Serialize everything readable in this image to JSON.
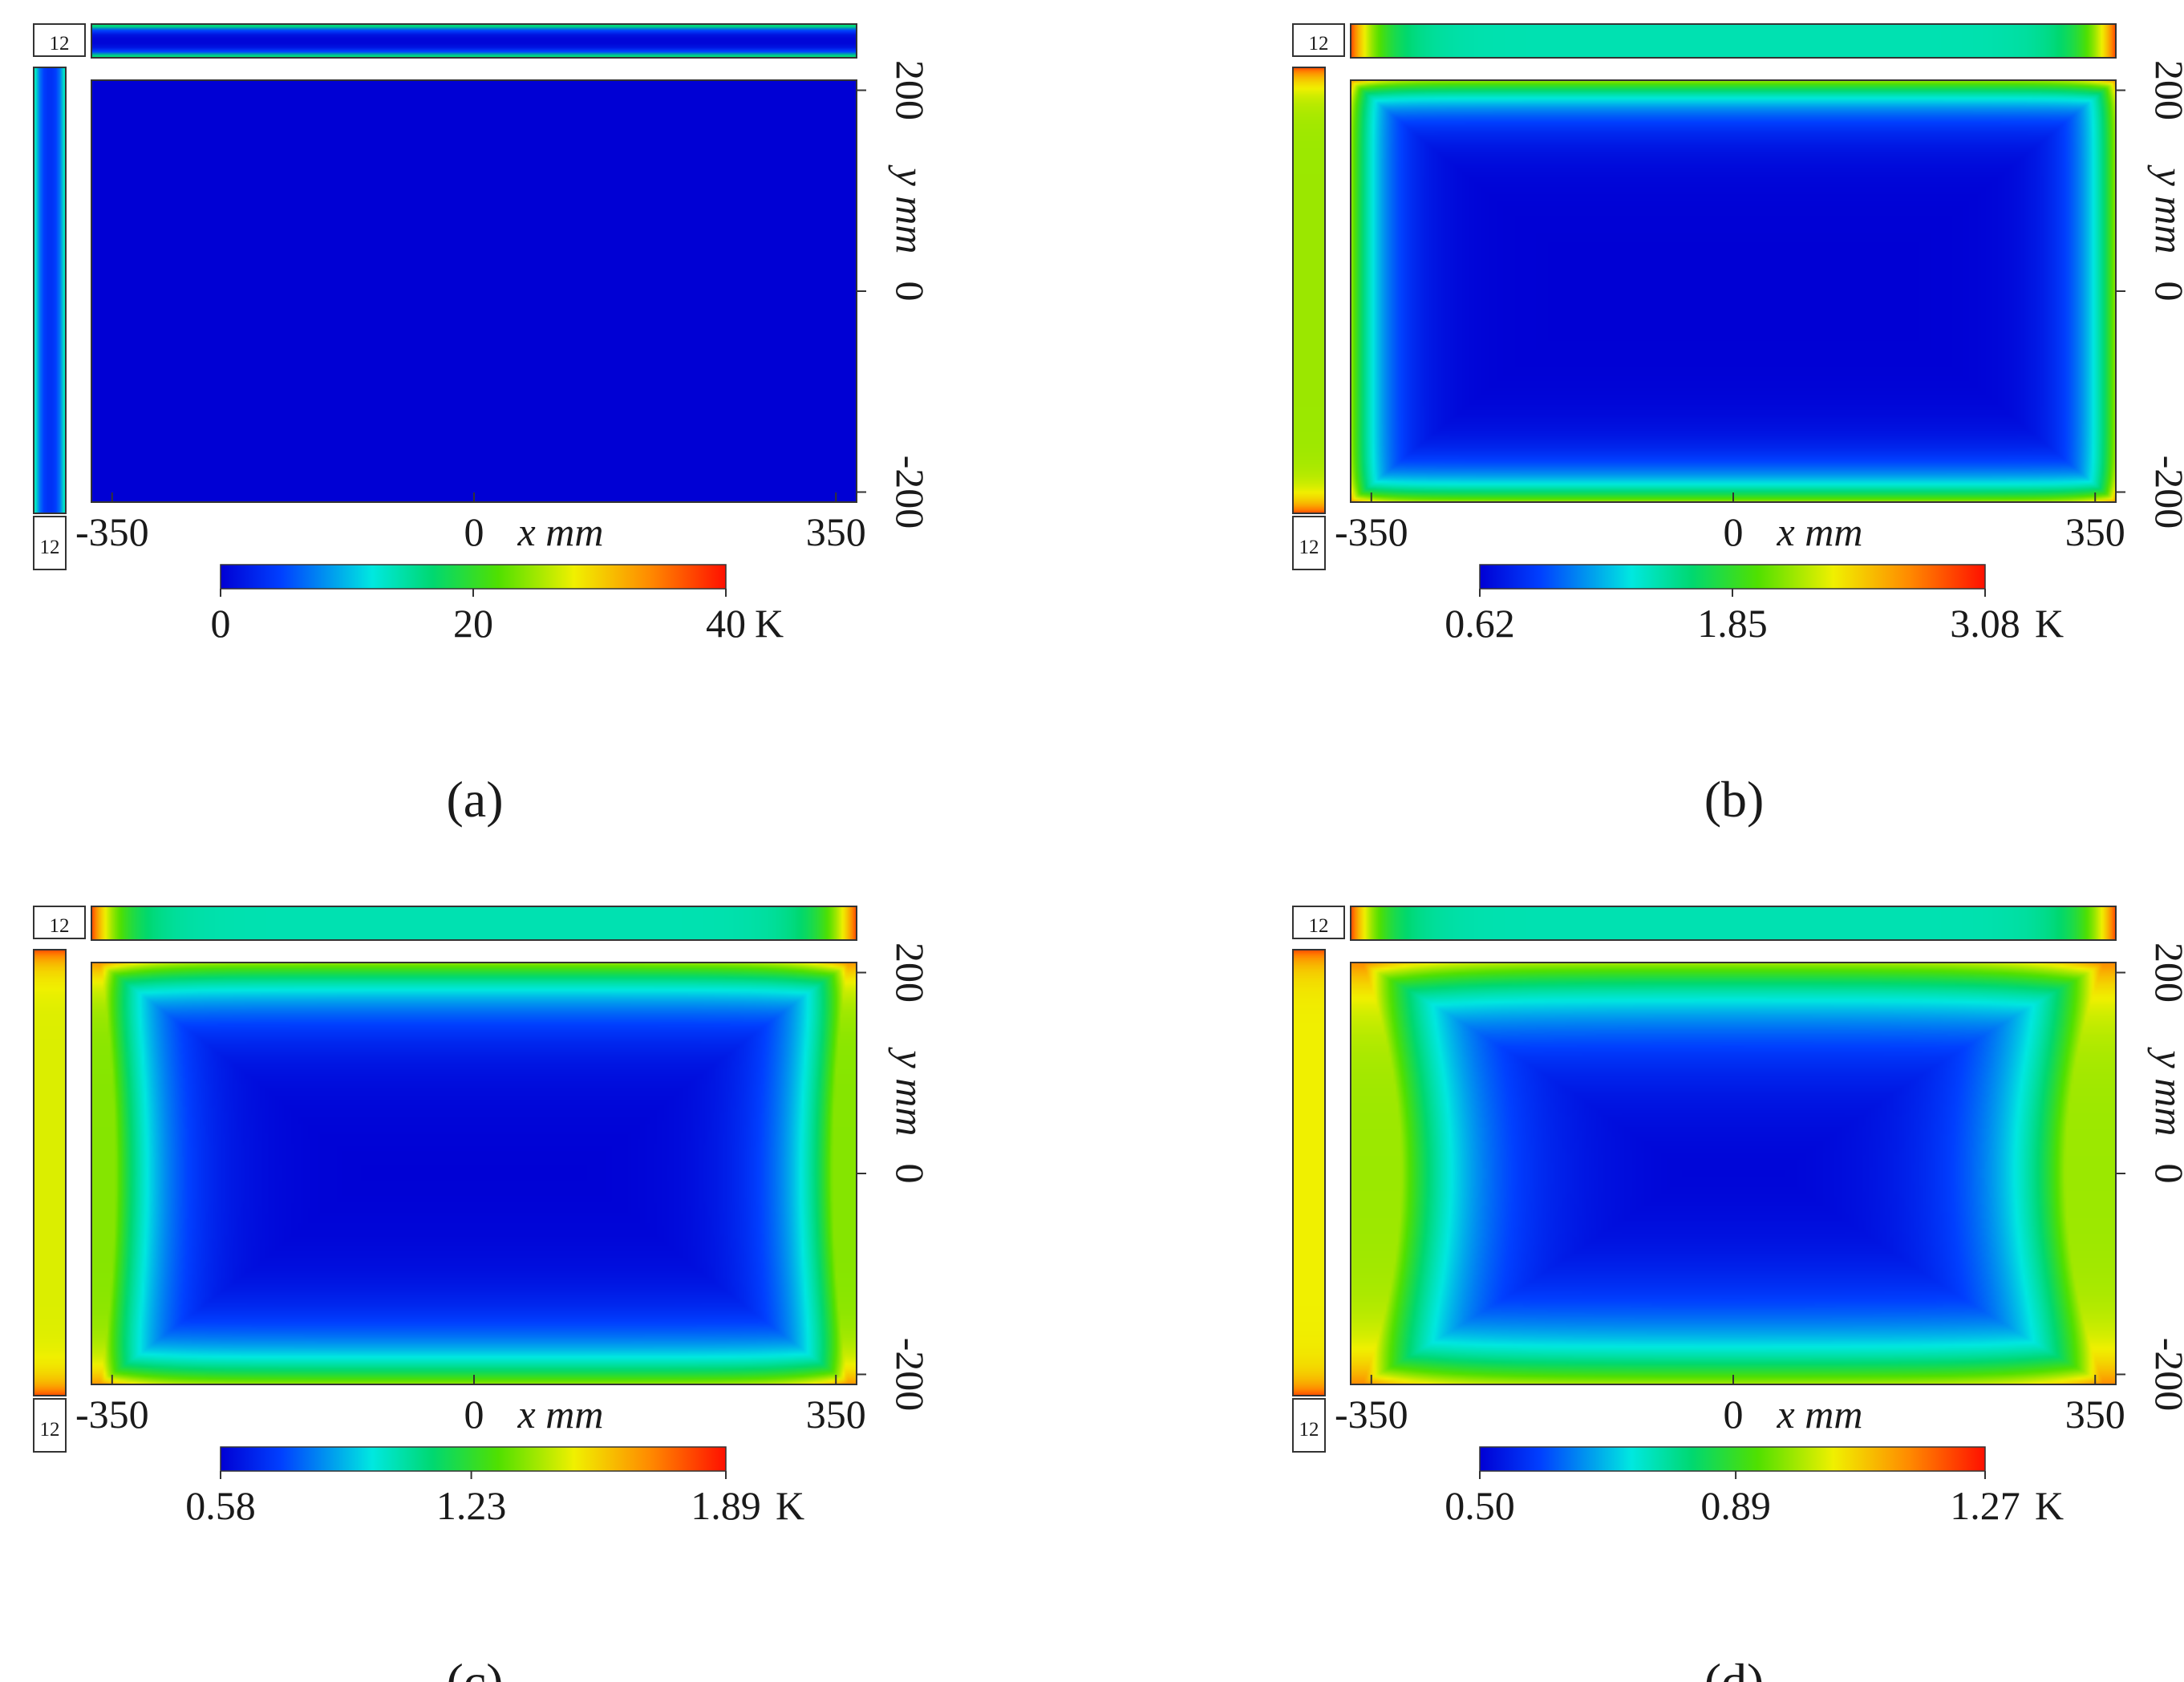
{
  "chart_data": [
    {
      "type": "heatmap",
      "panel": "(a)",
      "panel_letter": "a",
      "x_ticks": [
        "-350",
        "0",
        "350"
      ],
      "x_unit": "x mm",
      "y_ticks": [
        "200",
        "0",
        "-200"
      ],
      "y_unit": "y mm",
      "xlim": [
        -370,
        370
      ],
      "ylim": [
        -210,
        210
      ],
      "strip_label": "12",
      "colorbar": {
        "ticks": [
          "0",
          "20",
          "40"
        ],
        "unit": "K",
        "min": 0,
        "max": 40
      },
      "field": {
        "center": 0,
        "wall_peak": 0,
        "corner_peak": 0,
        "decay_x": 0.02,
        "decay_y": 0.02,
        "bend": 0,
        "inset": 0,
        "top_strip_edge": 0,
        "top_strip_mid": 0,
        "side_strip_edge": 0,
        "side_strip_mid": 0,
        "outer_edge_top": 0.45
      }
    },
    {
      "type": "heatmap",
      "panel": "(b)",
      "panel_letter": "b",
      "x_ticks": [
        "-350",
        "0",
        "350"
      ],
      "x_unit": "x mm",
      "y_ticks": [
        "200",
        "0",
        "-200"
      ],
      "y_unit": "y mm",
      "xlim": [
        -370,
        370
      ],
      "ylim": [
        -210,
        210
      ],
      "strip_label": "12",
      "colorbar": {
        "ticks": [
          "0.62",
          "1.85",
          "3.08"
        ],
        "unit": "K",
        "min": 0.62,
        "max": 3.08
      },
      "field": {
        "center": 0,
        "wall_peak": 0.6,
        "corner_peak": 0.88,
        "decay_x": 0.04,
        "decay_y": 0.06,
        "bend": 0,
        "inset": 0,
        "top_strip_edge": 0.92,
        "top_strip_mid": 0.35,
        "side_strip_edge": 0.92,
        "side_strip_mid": 0.62,
        "outer_edge_top": 0
      }
    },
    {
      "type": "heatmap",
      "panel": "(c)",
      "panel_letter": "c",
      "x_ticks": [
        "-350",
        "0",
        "350"
      ],
      "x_unit": "x mm",
      "y_ticks": [
        "200",
        "0",
        "-200"
      ],
      "y_unit": "y mm",
      "xlim": [
        -370,
        370
      ],
      "ylim": [
        -210,
        210
      ],
      "strip_label": "12",
      "colorbar": {
        "ticks": [
          "0.58",
          "1.23",
          "1.89"
        ],
        "unit": "K",
        "min": 0.58,
        "max": 1.89
      },
      "field": {
        "center": 0,
        "wall_peak": 0.6,
        "corner_peak": 0.92,
        "decay_x": 0.06,
        "decay_y": 0.09,
        "bend": 0.02,
        "inset": 0.01,
        "top_strip_edge": 0.92,
        "top_strip_mid": 0.35,
        "side_strip_edge": 0.92,
        "side_strip_mid": 0.68,
        "outer_edge_top": 0
      }
    },
    {
      "type": "heatmap",
      "panel": "(d)",
      "panel_letter": "d",
      "x_ticks": [
        "-350",
        "0",
        "350"
      ],
      "x_unit": "x mm",
      "y_ticks": [
        "200",
        "0",
        "-200"
      ],
      "y_unit": "y mm",
      "xlim": [
        -370,
        370
      ],
      "ylim": [
        -210,
        210
      ],
      "strip_label": "12",
      "colorbar": {
        "ticks": [
          "0.50",
          "0.89",
          "1.27"
        ],
        "unit": "K",
        "min": 0.5,
        "max": 1.27
      },
      "field": {
        "center": 0,
        "wall_peak": 0.62,
        "corner_peak": 0.94,
        "decay_x": 0.09,
        "decay_y": 0.12,
        "bend": 0.05,
        "inset": 0.015,
        "top_strip_edge": 0.92,
        "top_strip_mid": 0.35,
        "side_strip_edge": 0.92,
        "side_strip_mid": 0.7,
        "outer_edge_top": 0
      }
    }
  ]
}
